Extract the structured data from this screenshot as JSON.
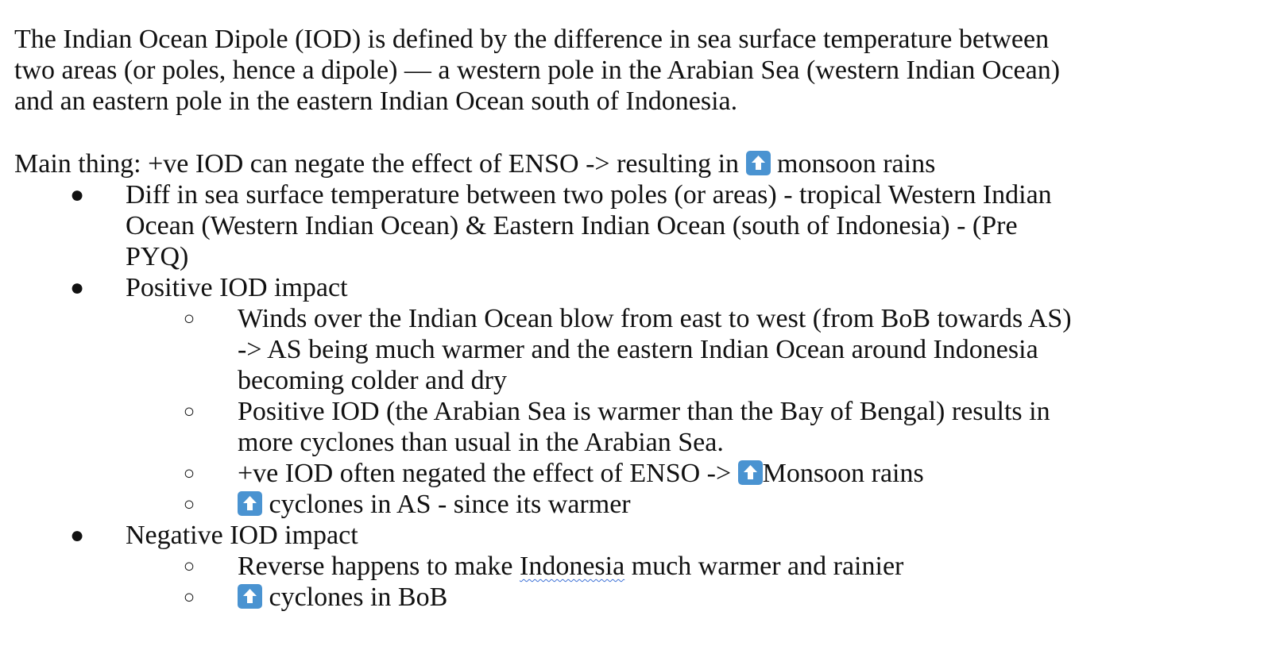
{
  "intro": {
    "line1": "The Indian Ocean Dipole (IOD) is defined by the difference in sea surface temperature between",
    "line2": "two  areas (or poles, hence a dipole) — a western pole in the Arabian Sea (western Indian Ocean)",
    "line3": "and an  eastern pole in the eastern Indian Ocean south of Indonesia."
  },
  "main": {
    "prefix": "Main thing: +ve IOD can negate the effect of ENSO -> resulting in",
    "suffix": " monsoon rains"
  },
  "bullet1": {
    "line1": "Diff in sea surface temperature between two poles (or areas) - tropical Western Indian",
    "line2": "Ocean (Western Indian Ocean) & Eastern Indian Ocean (south of Indonesia) - (Pre",
    "line3": "PYQ)"
  },
  "bullet2": {
    "label": "Positive IOD impact",
    "sub1": {
      "line1": "Winds over the Indian Ocean blow from east to west (from BoB towards AS)",
      "line2": "-> AS being much warmer and the eastern Indian Ocean around Indonesia",
      "line3": "becoming colder and dry"
    },
    "sub2": {
      "line1": "Positive IOD (the Arabian Sea is warmer than the Bay of Bengal) results in",
      "line2": "more cyclones than usual  in the Arabian Sea."
    },
    "sub3": {
      "prefix": "+ve IOD often negated the effect of ENSO -> ",
      "suffix": "Monsoon rains"
    },
    "sub4": {
      "suffix": " cyclones in AS - since its warmer"
    }
  },
  "bullet3": {
    "label": "Negative IOD impact",
    "sub1": {
      "prefix": "Reverse happens to make ",
      "flagged": "Indonesia",
      "suffix": " much warmer and rainier"
    },
    "sub2": {
      "suffix": " cyclones in BoB"
    }
  },
  "markers": {
    "bullet": "●",
    "circle": "○"
  },
  "icons": {
    "up_arrow": "up-arrow-button-icon",
    "color": "#4a93d1"
  }
}
